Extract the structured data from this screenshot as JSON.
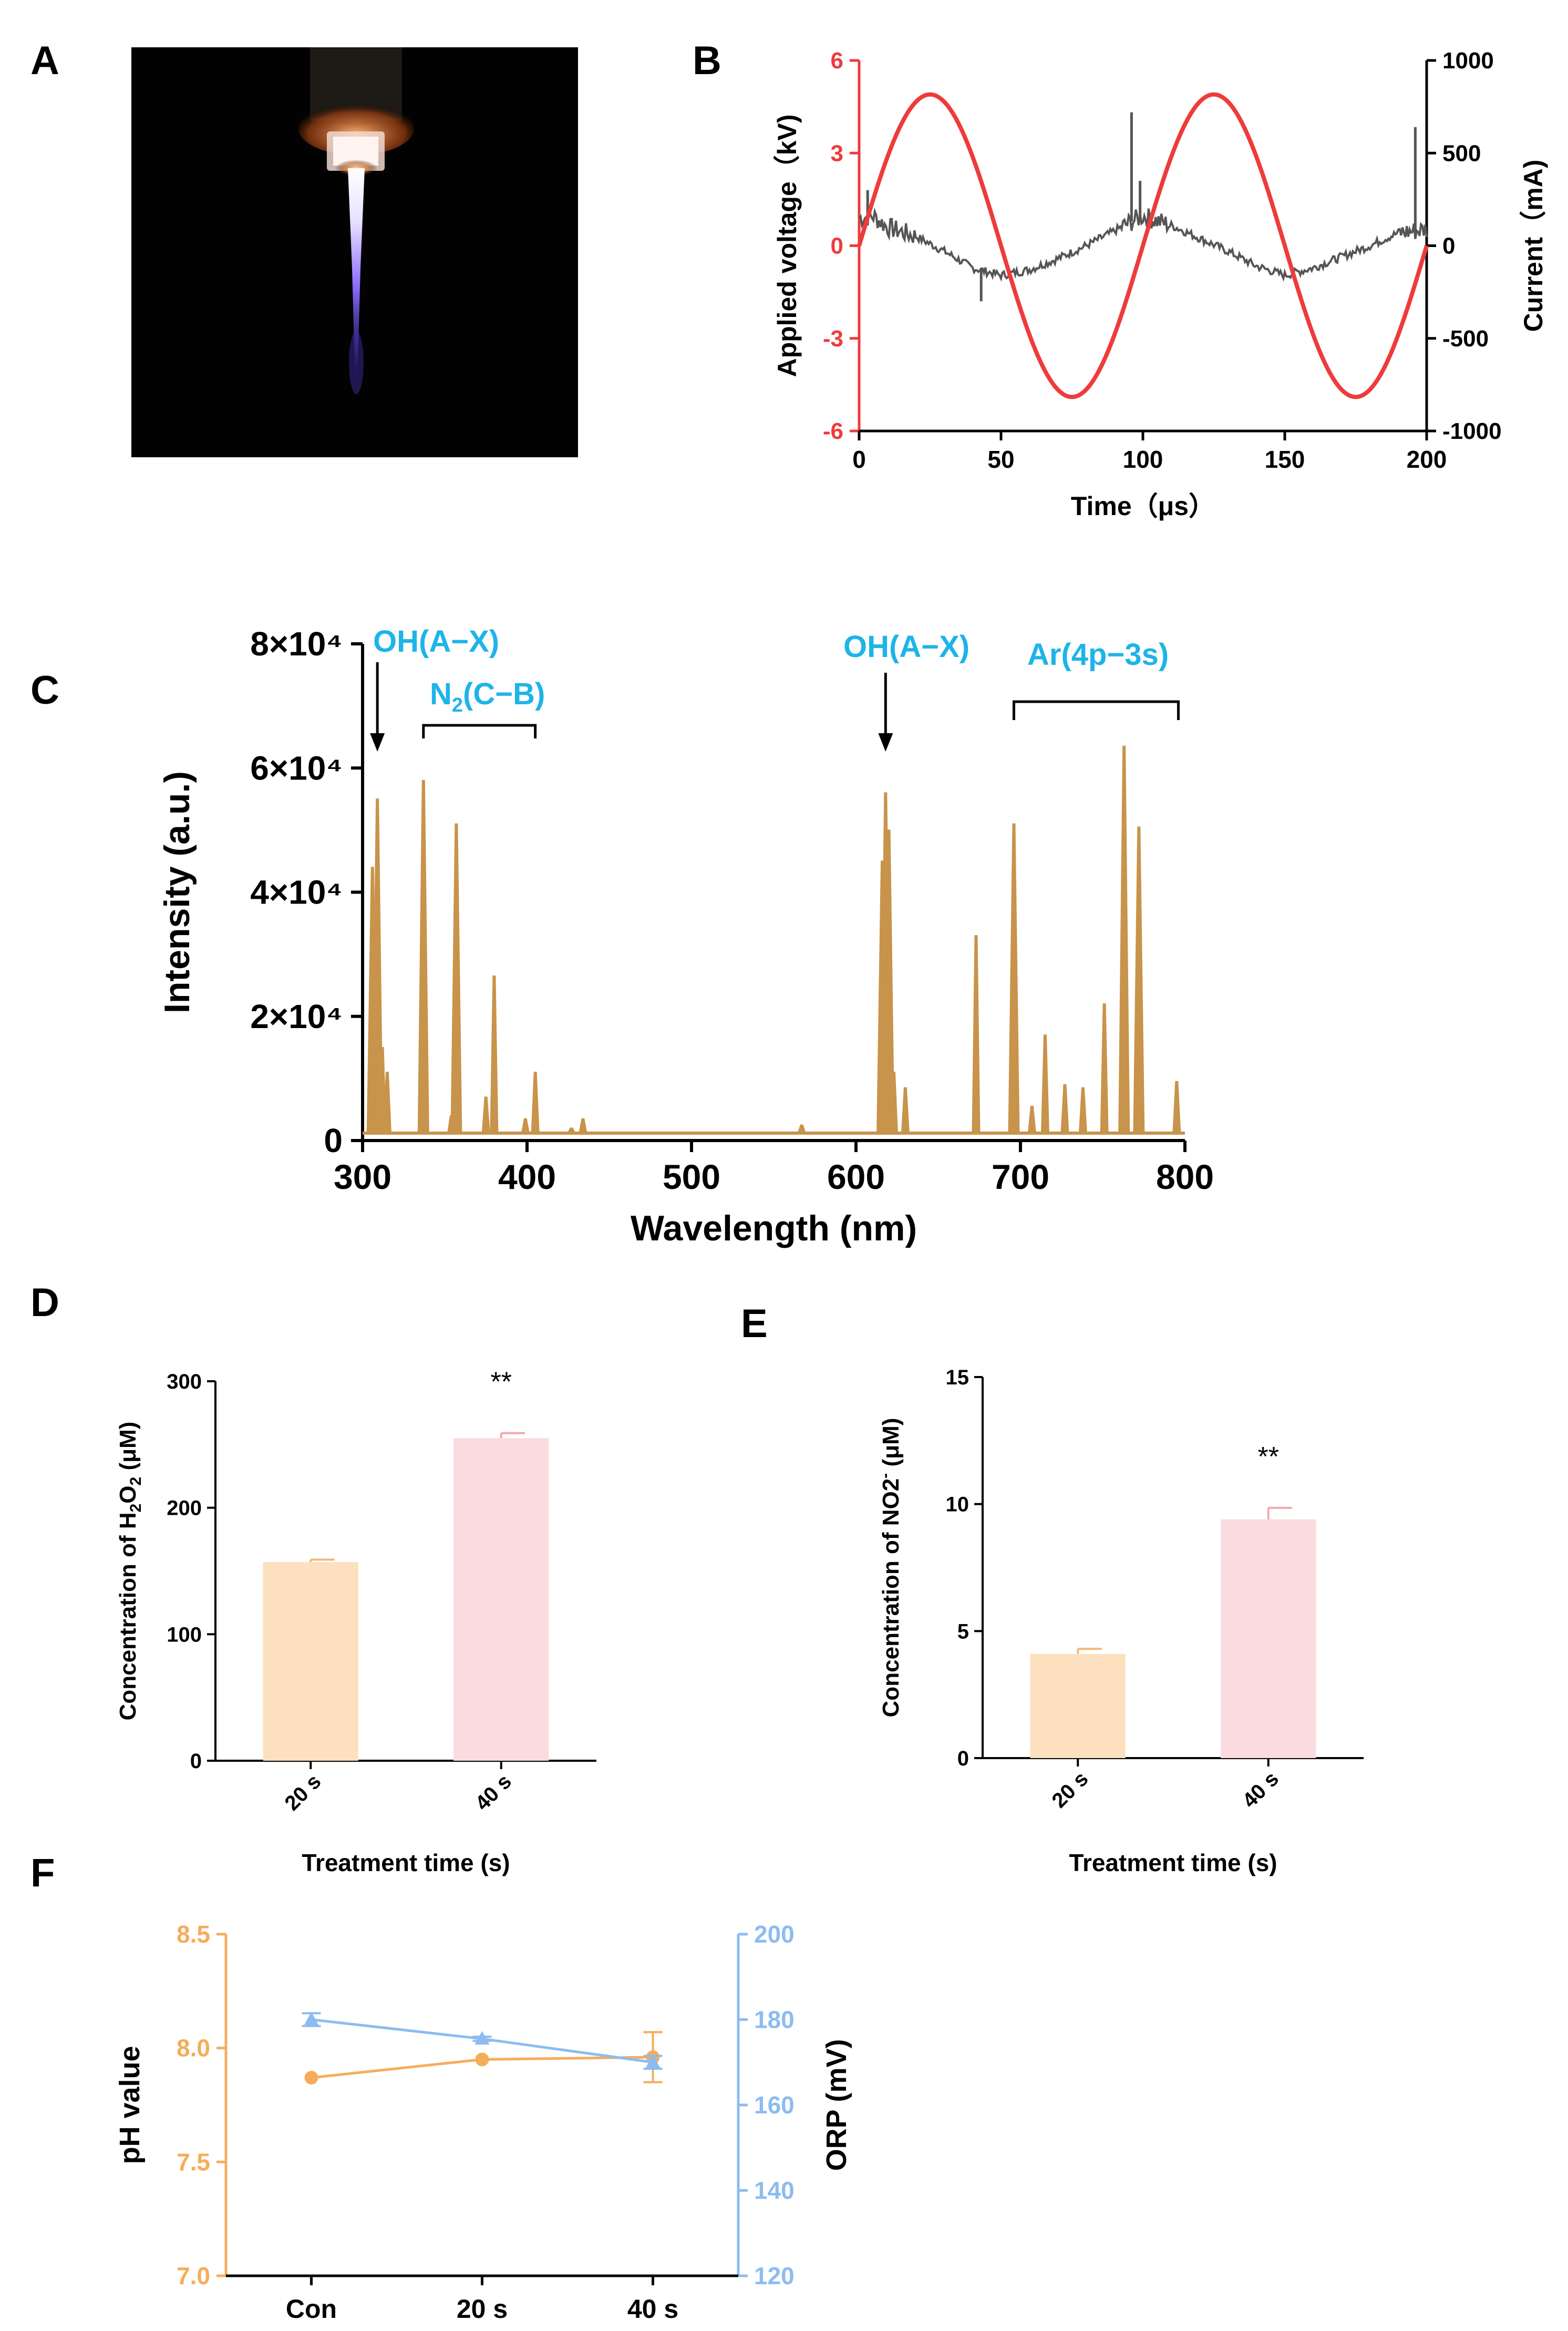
{
  "panels": {
    "A": "A",
    "B": "B",
    "C": "C",
    "D": "D",
    "E": "E",
    "F": "F"
  },
  "colors": {
    "voltage": "#ee3b3b",
    "current": "#555555",
    "spectrum": "#c8934a",
    "label_blue": "#1eb4e8",
    "bar_20s": "#fde0c0",
    "bar_40s": "#fbdbdf",
    "ph": "#f5ad5a",
    "orp": "#8cbcf0"
  },
  "chart_data": [
    {
      "panel": "B",
      "type": "line",
      "xlabel": "Time（μs）",
      "ylabel_left": "Applied voltage（kV)",
      "ylabel_right": "Current（mA)",
      "xlim": [
        0,
        200
      ],
      "ylim_left": [
        -6,
        6
      ],
      "ylim_right": [
        -1000,
        1000
      ],
      "xticks": [
        "0",
        "50",
        "100",
        "150",
        "200"
      ],
      "yticks_left": [
        "-6",
        "-3",
        "0",
        "3",
        "6"
      ],
      "yticks_right": [
        "-1000",
        "-500",
        "0",
        "500",
        "1000"
      ],
      "series": [
        {
          "axis": "left",
          "voltage_amplitude": 4.9,
          "period": 100,
          "x": [
            0,
            25,
            50,
            75,
            100,
            125,
            150,
            175,
            200
          ],
          "values": [
            0,
            4.9,
            0,
            -4.9,
            0,
            4.9,
            0,
            -4.9,
            0
          ]
        },
        {
          "axis": "right",
          "x": [
            0,
            5,
            10,
            20,
            30,
            40,
            50,
            60,
            70,
            80,
            90,
            96,
            100,
            110,
            120,
            130,
            140,
            150,
            160,
            170,
            180,
            190,
            196,
            200
          ],
          "values": [
            150,
            160,
            100,
            50,
            -30,
            -120,
            -160,
            -130,
            -70,
            0,
            80,
            130,
            160,
            110,
            40,
            -30,
            -110,
            -160,
            -120,
            -60,
            0,
            70,
            80,
            90
          ],
          "spikes": [
            {
              "x": 96,
              "value": 720
            },
            {
              "x": 99,
              "value": 350
            },
            {
              "x": 196,
              "value": 640
            },
            {
              "x": 3,
              "value": 300
            },
            {
              "x": 43,
              "value": -300
            }
          ]
        }
      ]
    },
    {
      "panel": "C",
      "type": "line",
      "xlabel": "Wavelength (nm)",
      "ylabel": "Intensity (a.u.)",
      "xlim": [
        300,
        800
      ],
      "ylim": [
        0,
        80000
      ],
      "xticks": [
        "300",
        "400",
        "500",
        "600",
        "700",
        "800"
      ],
      "yticks": [
        "0",
        "2×10⁴",
        "4×10⁴",
        "6×10⁴",
        "8×10⁴"
      ],
      "peaks": [
        {
          "x": 306,
          "value": 44000
        },
        {
          "x": 309,
          "value": 55000
        },
        {
          "x": 312,
          "value": 15000
        },
        {
          "x": 315,
          "value": 11000
        },
        {
          "x": 337,
          "value": 58000
        },
        {
          "x": 354,
          "value": 4000
        },
        {
          "x": 357,
          "value": 51000
        },
        {
          "x": 375,
          "value": 7000
        },
        {
          "x": 380,
          "value": 26500
        },
        {
          "x": 399,
          "value": 3500
        },
        {
          "x": 405,
          "value": 11000
        },
        {
          "x": 427,
          "value": 2000
        },
        {
          "x": 434,
          "value": 3500
        },
        {
          "x": 567,
          "value": 2500
        },
        {
          "x": 616,
          "value": 45000
        },
        {
          "x": 618,
          "value": 56000
        },
        {
          "x": 620,
          "value": 50000
        },
        {
          "x": 623,
          "value": 11000
        },
        {
          "x": 630,
          "value": 8500
        },
        {
          "x": 673,
          "value": 33000
        },
        {
          "x": 696,
          "value": 51000
        },
        {
          "x": 707,
          "value": 5500
        },
        {
          "x": 715,
          "value": 17000
        },
        {
          "x": 727,
          "value": 9000
        },
        {
          "x": 738,
          "value": 8500
        },
        {
          "x": 751,
          "value": 22000
        },
        {
          "x": 763,
          "value": 63500
        },
        {
          "x": 772,
          "value": 50500
        },
        {
          "x": 795,
          "value": 9500
        }
      ],
      "annotations": {
        "oh1": "OH(A−X)",
        "n2_base": "N",
        "n2_sub": "2",
        "n2_rest": "(C−B)",
        "oh2": "OH(A−X)",
        "ar": "Ar(4p−3s)"
      }
    },
    {
      "panel": "D",
      "type": "bar",
      "categories": [
        "20 s",
        "40 s"
      ],
      "values": [
        157,
        255
      ],
      "errors": [
        2,
        4
      ],
      "xlabel": "Treatment time (s)",
      "ylabel_pre": "Concentration of H",
      "ylabel_sub1": "2",
      "ylabel_mid": "O",
      "ylabel_sub2": "2",
      "ylabel_post": " (μM)",
      "ylim": [
        0,
        300
      ],
      "yticks": [
        "0",
        "100",
        "200",
        "300"
      ],
      "significance": "**"
    },
    {
      "panel": "E",
      "type": "bar",
      "categories": [
        "20 s",
        "40 s"
      ],
      "values": [
        4.1,
        9.4
      ],
      "errors": [
        0.2,
        0.45
      ],
      "xlabel": "Treatment time (s)",
      "ylabel_pre": "Concentration of NO2",
      "ylabel_sup": "-",
      "ylabel_post": " (μM)",
      "ylim": [
        0,
        15
      ],
      "yticks": [
        "0",
        "5",
        "10",
        "15"
      ],
      "significance": "**"
    },
    {
      "panel": "F",
      "type": "line",
      "categories": [
        "Con",
        "20 s",
        "40 s"
      ],
      "ylabel_left": "pH value",
      "ylabel_right": "ORP (mV)",
      "ylim_left": [
        7.0,
        8.5
      ],
      "ylim_right": [
        120,
        200
      ],
      "yticks_left": [
        "7.0",
        "7.5",
        "8.0",
        "8.5"
      ],
      "yticks_right": [
        "120",
        "140",
        "160",
        "180",
        "200"
      ],
      "series": [
        {
          "axis": "left",
          "marker": "circle",
          "values": [
            7.87,
            7.95,
            7.96
          ],
          "errors": [
            0.0,
            0.0,
            0.11
          ]
        },
        {
          "axis": "right",
          "marker": "triangle",
          "values": [
            180,
            175.5,
            170
          ],
          "errors": [
            1.5,
            0.5,
            1.5
          ]
        }
      ]
    }
  ]
}
